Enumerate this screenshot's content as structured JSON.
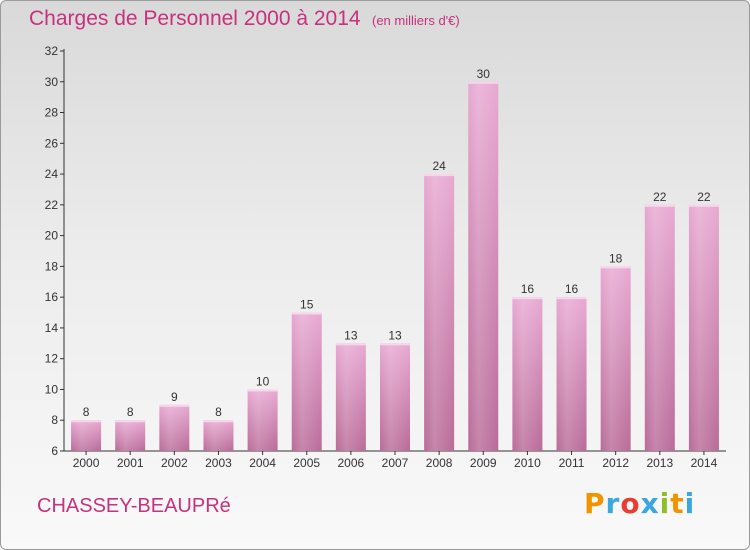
{
  "header": {
    "title": "Charges de Personnel 2000 à 2014",
    "subtitle": "(en milliers d'€)"
  },
  "footer": {
    "commune": "CHASSEY-BEAUPRé",
    "brand_letters": [
      "P",
      "r",
      "o",
      "x",
      "i",
      "t",
      "i"
    ],
    "brand_colors": [
      "#f29400",
      "#3aa7de",
      "#e83e32",
      "#3aa7de",
      "#8cbf2b",
      "#f29400",
      "#3aa7de"
    ]
  },
  "colors": {
    "bar_top": "#e8a9d2",
    "bar_bottom": "#b96b98",
    "text_accent": "#c7317d"
  },
  "chart_data": {
    "type": "bar",
    "title": "Charges de Personnel 2000 à 2014",
    "subtitle": "(en milliers d'€)",
    "categories": [
      "2000",
      "2001",
      "2002",
      "2003",
      "2004",
      "2005",
      "2006",
      "2007",
      "2008",
      "2009",
      "2010",
      "2011",
      "2012",
      "2013",
      "2014"
    ],
    "values": [
      8,
      8,
      9,
      8,
      10,
      15,
      13,
      13,
      24,
      30,
      16,
      16,
      18,
      22,
      22
    ],
    "value_labels": [
      "8",
      "8",
      "9",
      "8",
      "10",
      "15",
      "13",
      "13",
      "24",
      "30",
      "16",
      "16",
      "18",
      "22",
      "22"
    ],
    "yticks": [
      "6",
      "8",
      "10",
      "12",
      "14",
      "16",
      "18",
      "20",
      "22",
      "24",
      "26",
      "28",
      "30",
      "32"
    ],
    "ylim": [
      6,
      32
    ],
    "grid": false
  }
}
